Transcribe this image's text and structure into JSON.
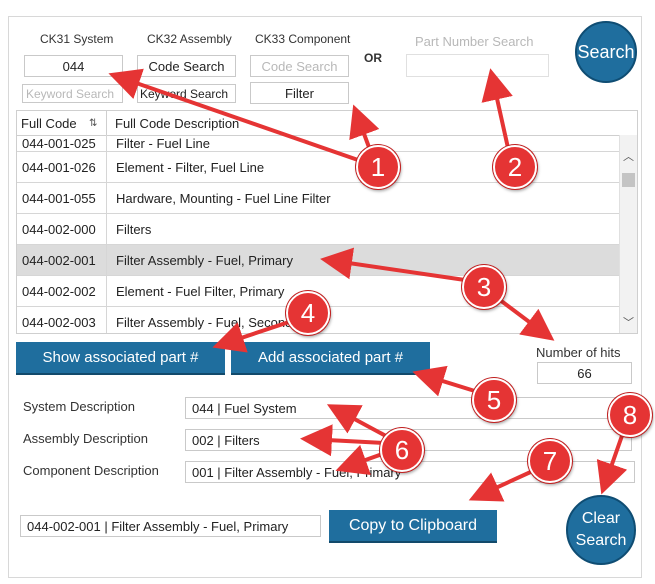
{
  "filters": {
    "ck31_label": "CK31 System",
    "ck32_label": "CK32 Assembly",
    "ck33_label": "CK33 Component",
    "or_label": "OR",
    "part_number_label": "Part Number Search",
    "ck31_value": "044",
    "ck31_keyword_placeholder": "Keyword Search",
    "ck32_code_search": "Code Search",
    "ck32_keyword_search": "Keyword Search",
    "ck33_code_search_placeholder": "Code Search",
    "ck33_filter": "Filter",
    "search_button": "Search"
  },
  "grid": {
    "col_code": "Full Code",
    "col_desc": "Full Code Description",
    "sort_icon": "sort-icon",
    "rows": [
      {
        "code": "044-001-025",
        "desc": "Filter - Fuel Line"
      },
      {
        "code": "044-001-026",
        "desc": "Element - Filter, Fuel Line"
      },
      {
        "code": "044-001-055",
        "desc": "Hardware, Mounting - Fuel Line Filter"
      },
      {
        "code": "044-002-000",
        "desc": "Filters"
      },
      {
        "code": "044-002-001",
        "desc": "Filter Assembly - Fuel, Primary",
        "selected": true
      },
      {
        "code": "044-002-002",
        "desc": "Element - Fuel Filter, Primary"
      },
      {
        "code": "044-002-003",
        "desc": "Filter Assembly - Fuel, Secondary"
      }
    ]
  },
  "actions": {
    "show_associated": "Show associated part #",
    "add_associated": "Add associated part #",
    "hits_label": "Number of hits",
    "hits_value": "66"
  },
  "details": {
    "system_label": "System Description",
    "system_value": "044 | Fuel System",
    "assembly_label": "Assembly Description",
    "assembly_value": "002 | Filters",
    "component_label": "Component Description",
    "component_value": "001 | Filter Assembly -   Fuel, Primary",
    "full_value": "044-002-001 | Filter Assembly -   Fuel, Primary",
    "copy_button": "Copy to Clipboard",
    "clear_button": "Clear Search"
  },
  "callouts": [
    "1",
    "2",
    "3",
    "4",
    "5",
    "6",
    "7",
    "8"
  ],
  "colors": {
    "accent": "#1f6e9e",
    "callout": "#e53434",
    "selected_row": "#dcdcdc"
  }
}
